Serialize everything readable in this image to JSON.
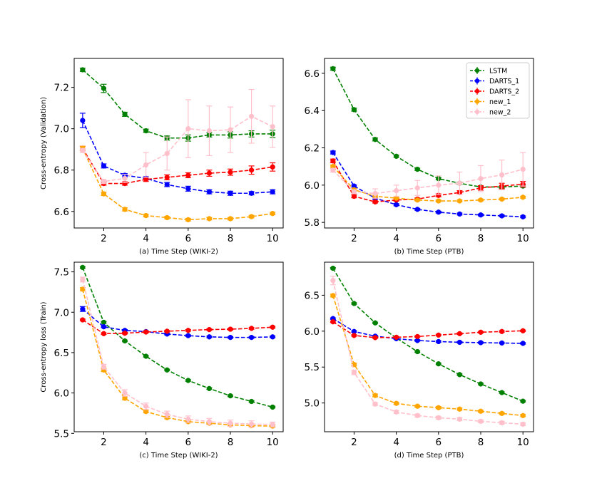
{
  "chart_data": [
    {
      "type": "line",
      "xlabel": "(a) Time Step (WIKI-2)",
      "ylabel": "Cross-entropy (Validation)",
      "xlim": [
        0.6,
        10.5
      ],
      "ylim": [
        6.52,
        7.34
      ],
      "xticks": [
        2,
        4,
        6,
        8,
        10
      ],
      "yticks": [
        6.6,
        6.8,
        7.0,
        7.2
      ],
      "ytick_labels": [
        "6.6",
        "6.8",
        "7.0",
        "7.2"
      ],
      "x": [
        1,
        2,
        3,
        4,
        5,
        6,
        7,
        8,
        9,
        10
      ],
      "series": [
        {
          "name": "LSTM",
          "color": "#008000",
          "values": [
            7.285,
            7.195,
            7.07,
            6.99,
            6.955,
            6.955,
            6.97,
            6.97,
            6.975,
            6.975
          ],
          "errors": [
            0.008,
            0.02,
            0.01,
            0.008,
            0.01,
            0.015,
            0.01,
            0.015,
            0.015,
            0.018
          ]
        },
        {
          "name": "DARTS_1",
          "color": "#0000ff",
          "values": [
            7.04,
            6.82,
            6.775,
            6.76,
            6.73,
            6.71,
            6.695,
            6.688,
            6.688,
            6.695
          ],
          "errors": [
            0.035,
            0.01,
            0.008,
            0.008,
            0.01,
            0.012,
            0.01,
            0.01,
            0.008,
            0.01
          ]
        },
        {
          "name": "DARTS_2",
          "color": "#ff0000",
          "values": [
            6.905,
            6.735,
            6.735,
            6.755,
            6.765,
            6.775,
            6.785,
            6.79,
            6.8,
            6.815
          ],
          "errors": [
            0.01,
            0.008,
            0.008,
            0.01,
            0.012,
            0.012,
            0.015,
            0.015,
            0.02,
            0.02
          ]
        },
        {
          "name": "new_1",
          "color": "#ffa500",
          "values": [
            6.905,
            6.685,
            6.61,
            6.58,
            6.57,
            6.56,
            6.565,
            6.565,
            6.575,
            6.59
          ],
          "errors": [
            0.01,
            0.008,
            0.008,
            0.006,
            0.006,
            0.006,
            0.006,
            0.006,
            0.006,
            0.006
          ]
        },
        {
          "name": "new_2",
          "color": "#ffc0cb",
          "values": [
            6.895,
            6.745,
            6.76,
            6.825,
            6.88,
            7.0,
            6.99,
            6.995,
            7.06,
            7.01
          ],
          "errors": [
            0.01,
            0.01,
            0.02,
            0.06,
            0.08,
            0.14,
            0.12,
            0.11,
            0.13,
            0.1
          ]
        }
      ]
    },
    {
      "type": "line",
      "xlabel": "(b) Time Step (PTB)",
      "ylabel": "",
      "xlim": [
        0.6,
        10.5
      ],
      "ylim": [
        5.77,
        6.68
      ],
      "xticks": [
        2,
        4,
        6,
        8,
        10
      ],
      "yticks": [
        5.8,
        6.0,
        6.2,
        6.4,
        6.6
      ],
      "ytick_labels": [
        "5.8",
        "6.0",
        "6.2",
        "6.4",
        "6.6"
      ],
      "x": [
        1,
        2,
        3,
        4,
        5,
        6,
        7,
        8,
        9,
        10
      ],
      "legend": {
        "position": "top-right",
        "entries": [
          "LSTM",
          "DARTS_1",
          "DARTS_2",
          "new_1",
          "new_2"
        ]
      },
      "series": [
        {
          "name": "LSTM",
          "color": "#008000",
          "values": [
            6.625,
            6.405,
            6.245,
            6.155,
            6.085,
            6.035,
            6.01,
            5.99,
            5.99,
            5.995
          ],
          "errors": [
            0.008,
            0.008,
            0.008,
            0.006,
            0.006,
            0.006,
            0.006,
            0.006,
            0.006,
            0.006
          ]
        },
        {
          "name": "DARTS_1",
          "color": "#0000ff",
          "values": [
            6.175,
            5.995,
            5.93,
            5.895,
            5.87,
            5.855,
            5.845,
            5.84,
            5.835,
            5.83
          ],
          "errors": [
            0.008,
            0.006,
            0.006,
            0.006,
            0.005,
            0.005,
            0.005,
            0.005,
            0.005,
            0.005
          ]
        },
        {
          "name": "DARTS_2",
          "color": "#ff0000",
          "values": [
            6.13,
            5.94,
            5.91,
            5.92,
            5.925,
            5.945,
            5.96,
            5.985,
            5.995,
            6.005
          ],
          "errors": [
            0.01,
            0.008,
            0.006,
            0.006,
            0.006,
            0.008,
            0.01,
            0.012,
            0.015,
            0.015
          ]
        },
        {
          "name": "new_1",
          "color": "#ffa500",
          "values": [
            6.1,
            5.975,
            5.94,
            5.93,
            5.92,
            5.915,
            5.915,
            5.92,
            5.925,
            5.935
          ],
          "errors": [
            0.008,
            0.006,
            0.006,
            0.005,
            0.005,
            0.005,
            0.005,
            0.005,
            0.005,
            0.005
          ]
        },
        {
          "name": "new_2",
          "color": "#ffc0cb",
          "values": [
            6.08,
            5.965,
            5.955,
            5.97,
            5.985,
            6.0,
            6.01,
            6.035,
            6.055,
            6.085
          ],
          "errors": [
            0.01,
            0.01,
            0.025,
            0.03,
            0.04,
            0.05,
            0.06,
            0.07,
            0.08,
            0.09
          ]
        }
      ]
    },
    {
      "type": "line",
      "xlabel": "(c) Time Step (WIKI-2)",
      "ylabel": "Cross-entropy loss (Train)",
      "xlim": [
        0.6,
        10.5
      ],
      "ylim": [
        5.52,
        7.62
      ],
      "xticks": [
        2,
        4,
        6,
        8,
        10
      ],
      "yticks": [
        5.5,
        6.0,
        6.5,
        7.0,
        7.5
      ],
      "ytick_labels": [
        "5.5",
        "6.0",
        "6.5",
        "7.0",
        "7.5"
      ],
      "x": [
        1,
        2,
        3,
        4,
        5,
        6,
        7,
        8,
        9,
        10
      ],
      "series": [
        {
          "name": "LSTM",
          "color": "#008000",
          "values": [
            7.555,
            6.875,
            6.645,
            6.455,
            6.285,
            6.155,
            6.055,
            5.965,
            5.895,
            5.825
          ],
          "errors": [
            0.01,
            0.01,
            0.01,
            0.01,
            0.01,
            0.01,
            0.01,
            0.01,
            0.01,
            0.01
          ]
        },
        {
          "name": "DARTS_1",
          "color": "#0000ff",
          "values": [
            7.04,
            6.82,
            6.775,
            6.76,
            6.73,
            6.71,
            6.695,
            6.688,
            6.688,
            6.695
          ],
          "errors": [
            0.03,
            0.01,
            0.01,
            0.01,
            0.01,
            0.01,
            0.01,
            0.01,
            0.01,
            0.01
          ]
        },
        {
          "name": "DARTS_2",
          "color": "#ff0000",
          "values": [
            6.905,
            6.735,
            6.74,
            6.755,
            6.765,
            6.775,
            6.785,
            6.79,
            6.8,
            6.815
          ],
          "errors": [
            0.01,
            0.01,
            0.01,
            0.01,
            0.01,
            0.01,
            0.01,
            0.01,
            0.01,
            0.01
          ]
        },
        {
          "name": "new_1",
          "color": "#ffa500",
          "values": [
            7.285,
            6.285,
            5.935,
            5.77,
            5.695,
            5.645,
            5.625,
            5.605,
            5.595,
            5.59
          ],
          "errors": [
            0.02,
            0.02,
            0.02,
            0.015,
            0.015,
            0.015,
            0.015,
            0.015,
            0.015,
            0.015
          ]
        },
        {
          "name": "new_2",
          "color": "#ffc0cb",
          "values": [
            7.405,
            6.325,
            6.0,
            5.835,
            5.735,
            5.675,
            5.645,
            5.625,
            5.615,
            5.61
          ],
          "errors": [
            0.03,
            0.03,
            0.04,
            0.04,
            0.04,
            0.04,
            0.04,
            0.04,
            0.04,
            0.03
          ]
        }
      ]
    },
    {
      "type": "line",
      "xlabel": "(d) Time Step (PTB)",
      "ylabel": "",
      "xlim": [
        0.6,
        10.5
      ],
      "ylim": [
        4.6,
        6.96
      ],
      "xticks": [
        2,
        4,
        6,
        8,
        10
      ],
      "yticks": [
        5.0,
        5.5,
        6.0,
        6.5
      ],
      "ytick_labels": [
        "5.0",
        "5.5",
        "6.0",
        "6.5"
      ],
      "x": [
        1,
        2,
        3,
        4,
        5,
        6,
        7,
        8,
        9,
        10
      ],
      "series": [
        {
          "name": "LSTM",
          "color": "#008000",
          "values": [
            6.875,
            6.385,
            6.115,
            5.905,
            5.715,
            5.545,
            5.395,
            5.265,
            5.145,
            5.025
          ],
          "errors": [
            0.01,
            0.01,
            0.01,
            0.01,
            0.01,
            0.01,
            0.01,
            0.01,
            0.01,
            0.01
          ]
        },
        {
          "name": "DARTS_1",
          "color": "#0000ff",
          "values": [
            6.175,
            5.995,
            5.93,
            5.895,
            5.87,
            5.855,
            5.845,
            5.84,
            5.835,
            5.83
          ],
          "errors": [
            0.01,
            0.01,
            0.01,
            0.01,
            0.01,
            0.01,
            0.01,
            0.01,
            0.01,
            0.01
          ]
        },
        {
          "name": "DARTS_2",
          "color": "#ff0000",
          "values": [
            6.13,
            5.94,
            5.91,
            5.915,
            5.925,
            5.945,
            5.965,
            5.985,
            5.995,
            6.005
          ],
          "errors": [
            0.01,
            0.01,
            0.01,
            0.01,
            0.01,
            0.01,
            0.01,
            0.01,
            0.01,
            0.01
          ]
        },
        {
          "name": "new_1",
          "color": "#ffa500",
          "values": [
            6.495,
            5.535,
            5.105,
            4.995,
            4.955,
            4.935,
            4.915,
            4.885,
            4.855,
            4.825
          ],
          "errors": [
            0.02,
            0.02,
            0.02,
            0.015,
            0.015,
            0.015,
            0.015,
            0.015,
            0.015,
            0.015
          ]
        },
        {
          "name": "new_2",
          "color": "#ffc0cb",
          "values": [
            6.705,
            5.425,
            4.985,
            4.875,
            4.825,
            4.795,
            4.775,
            4.745,
            4.725,
            4.705
          ],
          "errors": [
            0.06,
            0.03,
            0.02,
            0.02,
            0.02,
            0.02,
            0.02,
            0.02,
            0.02,
            0.02
          ]
        }
      ]
    }
  ]
}
